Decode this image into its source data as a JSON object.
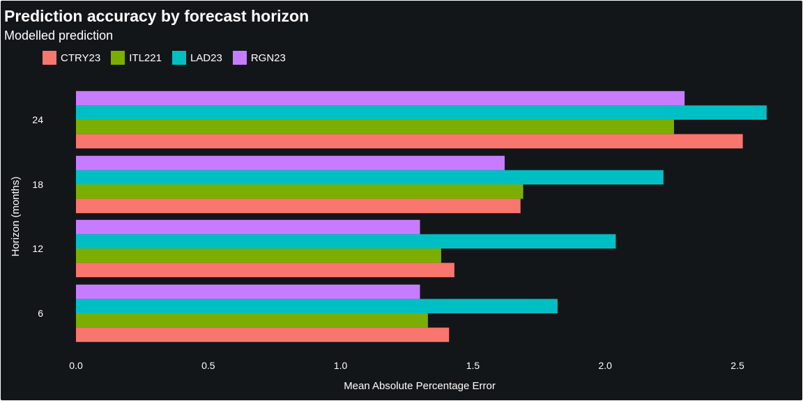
{
  "title": "Prediction accuracy by forecast horizon",
  "subtitle": "Modelled prediction",
  "colors": {
    "background": "#131619",
    "text": "#ffffff"
  },
  "chart_data": {
    "type": "bar",
    "orientation": "horizontal",
    "title": "Prediction accuracy by forecast horizon",
    "subtitle": "Modelled prediction",
    "xlabel": "Mean Absolute Percentage Error",
    "ylabel": "Horizon (months)",
    "xlim": [
      0,
      2.6
    ],
    "x_ticks": [
      "0.0",
      "0.5",
      "1.0",
      "1.5",
      "2.0",
      "2.5"
    ],
    "grid": false,
    "legend_position": "top-left",
    "categories": [
      "6",
      "12",
      "18",
      "24"
    ],
    "series": [
      {
        "name": "CTRY23",
        "color": "#F8766D",
        "values": [
          1.41,
          1.43,
          1.68,
          2.52
        ]
      },
      {
        "name": "ITL221",
        "color": "#7CAE00",
        "values": [
          1.33,
          1.38,
          1.69,
          2.26
        ]
      },
      {
        "name": "LAD23",
        "color": "#00BFC4",
        "values": [
          1.82,
          2.04,
          2.22,
          2.61
        ]
      },
      {
        "name": "RGN23",
        "color": "#C77CFF",
        "values": [
          1.3,
          1.3,
          1.62,
          2.3
        ]
      }
    ]
  }
}
